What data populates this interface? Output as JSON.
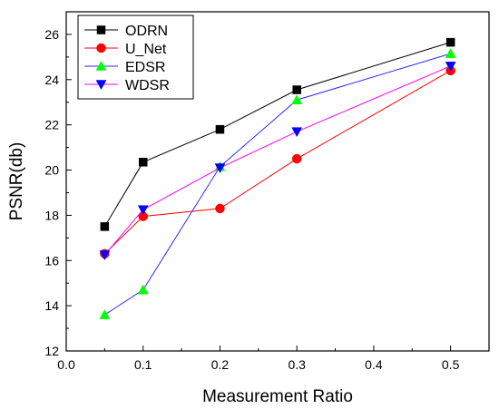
{
  "chart_data": {
    "type": "line",
    "title": "",
    "xlabel": "Measurement Ratio",
    "ylabel": "PSNR(db)",
    "xlim": [
      0.0,
      0.55
    ],
    "ylim": [
      12,
      27
    ],
    "xticks": [
      "0.0",
      "0.1",
      "0.2",
      "0.3",
      "0.4",
      "0.5"
    ],
    "yticks": [
      "12",
      "14",
      "16",
      "18",
      "20",
      "22",
      "24",
      "26"
    ],
    "grid": false,
    "legend_position": "top-left",
    "series": [
      {
        "name": "ODRN",
        "color": "#000000",
        "marker": "square",
        "x": [
          0.05,
          0.1,
          0.2,
          0.3,
          0.5
        ],
        "y": [
          17.5,
          20.35,
          21.8,
          23.55,
          25.65
        ]
      },
      {
        "name": "U_Net",
        "color": "#ff0000",
        "marker": "circle",
        "x": [
          0.05,
          0.1,
          0.2,
          0.3,
          0.5
        ],
        "y": [
          16.3,
          17.95,
          18.3,
          20.5,
          24.4
        ]
      },
      {
        "name": "EDSR",
        "color": "#00ff00",
        "line_color": "#2a2aff",
        "marker": "triangle-up",
        "x": [
          0.05,
          0.1,
          0.2,
          0.3,
          0.5
        ],
        "y": [
          13.6,
          14.7,
          20.15,
          23.1,
          25.15
        ]
      },
      {
        "name": "WDSR",
        "color": "#0000ff",
        "line_color": "#ff00ff",
        "marker": "triangle-down",
        "x": [
          0.05,
          0.1,
          0.2,
          0.3,
          0.5
        ],
        "y": [
          16.25,
          18.25,
          20.1,
          21.7,
          24.6
        ]
      }
    ]
  }
}
